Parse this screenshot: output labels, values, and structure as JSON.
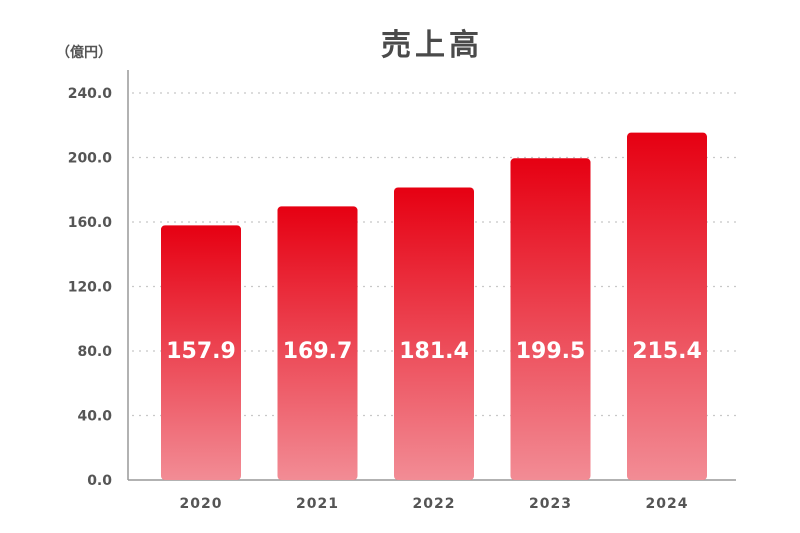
{
  "chart_data": {
    "type": "bar",
    "title": "売上高",
    "ylabel": "（億円）",
    "xlabel": "",
    "categories": [
      "2020",
      "2021",
      "2022",
      "2023",
      "2024"
    ],
    "values": [
      157.9,
      169.7,
      181.4,
      199.5,
      215.4
    ],
    "data_labels": [
      "157.9",
      "169.7",
      "181.4",
      "199.5",
      "215.4"
    ],
    "ylim": [
      0,
      240
    ],
    "yticks": [
      0,
      40,
      80,
      120,
      160,
      200,
      240
    ],
    "ytick_labels": [
      "0.0",
      "40.0",
      "80.0",
      "120.0",
      "160.0",
      "200.0",
      "240.0"
    ],
    "grid": true,
    "colors": {
      "bar_top": "#e60012",
      "bar_bottom": "#f28c95",
      "grid": "#c8c8c8",
      "axis": "#999999"
    }
  }
}
